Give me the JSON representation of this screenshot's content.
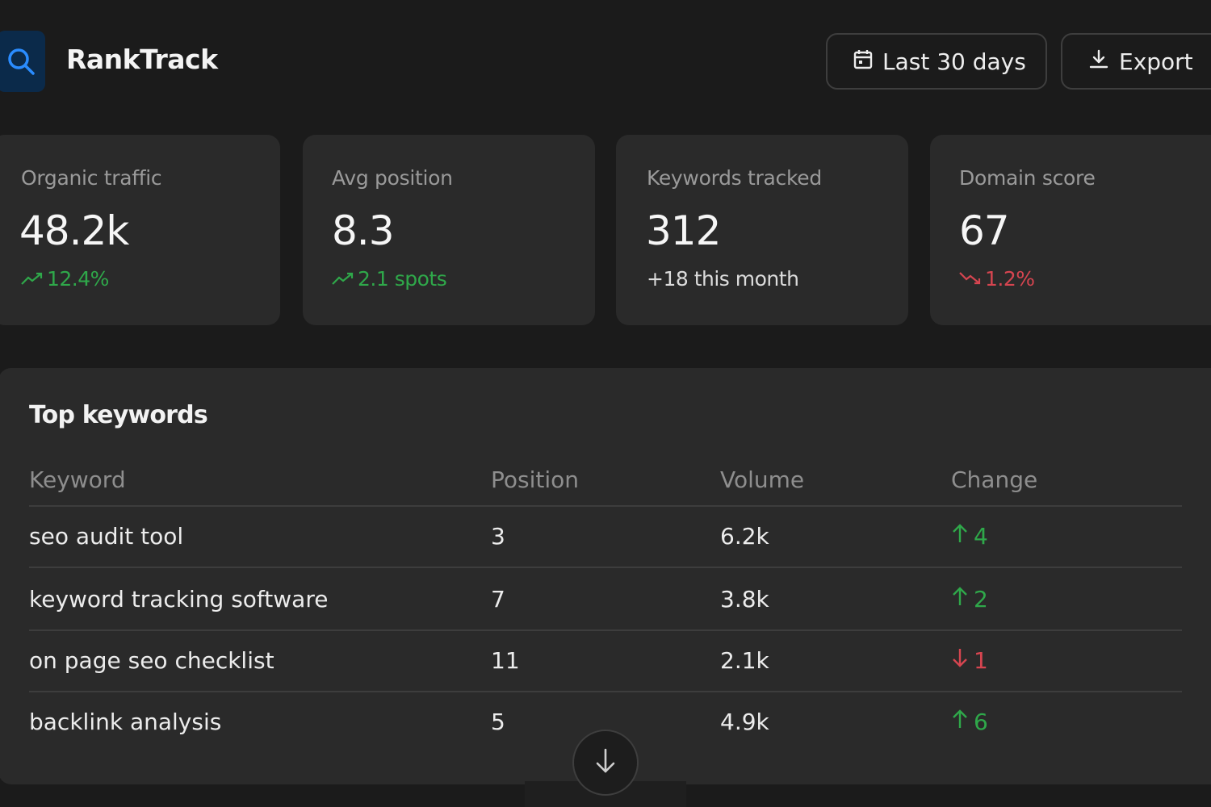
{
  "app": {
    "title": "RankTrack"
  },
  "header": {
    "range_label": "Last 30 days",
    "export_label": "Export"
  },
  "stats": [
    {
      "label": "Organic traffic",
      "value": "48.2k",
      "delta": "12.4%",
      "trend": "up"
    },
    {
      "label": "Avg position",
      "value": "8.3",
      "delta": "2.1 spots",
      "trend": "up"
    },
    {
      "label": "Keywords tracked",
      "value": "312",
      "delta": "+18 this month",
      "trend": "neutral"
    },
    {
      "label": "Domain score",
      "value": "67",
      "delta": "1.2%",
      "trend": "down"
    }
  ],
  "keywords": {
    "title": "Top keywords",
    "columns": [
      "Keyword",
      "Position",
      "Volume",
      "Change"
    ],
    "rows": [
      {
        "keyword": "seo audit tool",
        "position": "3",
        "volume": "6.2k",
        "change": "4",
        "direction": "up"
      },
      {
        "keyword": "keyword tracking software",
        "position": "7",
        "volume": "3.8k",
        "change": "2",
        "direction": "up"
      },
      {
        "keyword": "on page seo checklist",
        "position": "11",
        "volume": "2.1k",
        "change": "1",
        "direction": "down"
      },
      {
        "keyword": "backlink analysis",
        "position": "5",
        "volume": "4.9k",
        "change": "6",
        "direction": "up"
      }
    ]
  },
  "colors": {
    "background": "#1b1b1b",
    "card": "#2a2a2a",
    "positive": "#2fa84a",
    "negative": "#d64550",
    "accent": "#2a8cff"
  }
}
